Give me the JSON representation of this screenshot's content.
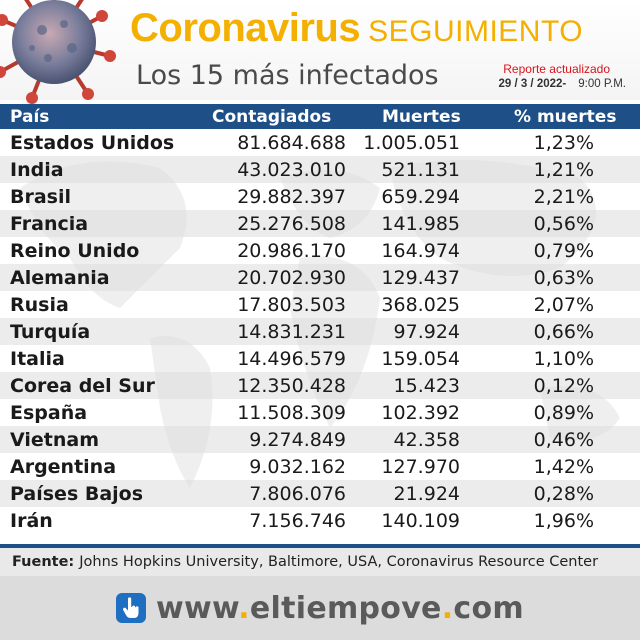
{
  "header": {
    "title_word1": "Coronavirus",
    "title_word2": "SEGUIMIENTO",
    "subtitle": "Los 15 más infectados",
    "report_label": "Reporte actualizado",
    "report_date": "29 / 3 / 2022-",
    "report_time": "9:00 P.M.",
    "title_color": "#f3b000",
    "report_color": "#d8141c"
  },
  "table": {
    "header_color": "#1e4f86",
    "columns": [
      "País",
      "Contagiados",
      "Muertes",
      "% muertes"
    ],
    "rows": [
      {
        "country": "Estados Unidos",
        "cases": "81.684.688",
        "deaths": "1.005.051",
        "pct": "1,23%"
      },
      {
        "country": "India",
        "cases": "43.023.010",
        "deaths": "521.131",
        "pct": "1,21%"
      },
      {
        "country": "Brasil",
        "cases": "29.882.397",
        "deaths": "659.294",
        "pct": "2,21%"
      },
      {
        "country": "Francia",
        "cases": "25.276.508",
        "deaths": "141.985",
        "pct": "0,56%"
      },
      {
        "country": "Reino Unido",
        "cases": "20.986.170",
        "deaths": "164.974",
        "pct": "0,79%"
      },
      {
        "country": "Alemania",
        "cases": "20.702.930",
        "deaths": "129.437",
        "pct": "0,63%"
      },
      {
        "country": "Rusia",
        "cases": "17.803.503",
        "deaths": "368.025",
        "pct": "2,07%"
      },
      {
        "country": "Turquía",
        "cases": "14.831.231",
        "deaths": "97.924",
        "pct": "0,66%"
      },
      {
        "country": "Italia",
        "cases": "14.496.579",
        "deaths": "159.054",
        "pct": "1,10%"
      },
      {
        "country": "Corea del Sur",
        "cases": "12.350.428",
        "deaths": "15.423",
        "pct": "0,12%"
      },
      {
        "country": "España",
        "cases": "11.508.309",
        "deaths": "102.392",
        "pct": "0,89%"
      },
      {
        "country": "Vietnam",
        "cases": "9.274.849",
        "deaths": "42.358",
        "pct": "0,46%"
      },
      {
        "country": "Argentina",
        "cases": "9.032.162",
        "deaths": "127.970",
        "pct": "1,42%"
      },
      {
        "country": "Países Bajos",
        "cases": "7.806.076",
        "deaths": "21.924",
        "pct": "0,28%"
      },
      {
        "country": "Irán",
        "cases": "7.156.746",
        "deaths": "140.109",
        "pct": "1,96%"
      }
    ]
  },
  "source": {
    "label": "Fuente:",
    "text": "Johns Hopkins University, Baltimore, USA, Coronavirus Resource Center"
  },
  "footer": {
    "url_part1": "www",
    "dot": ".",
    "url_part2": "eltiempove",
    "url_part3": "com",
    "icon": "hand-pointer-icon"
  }
}
